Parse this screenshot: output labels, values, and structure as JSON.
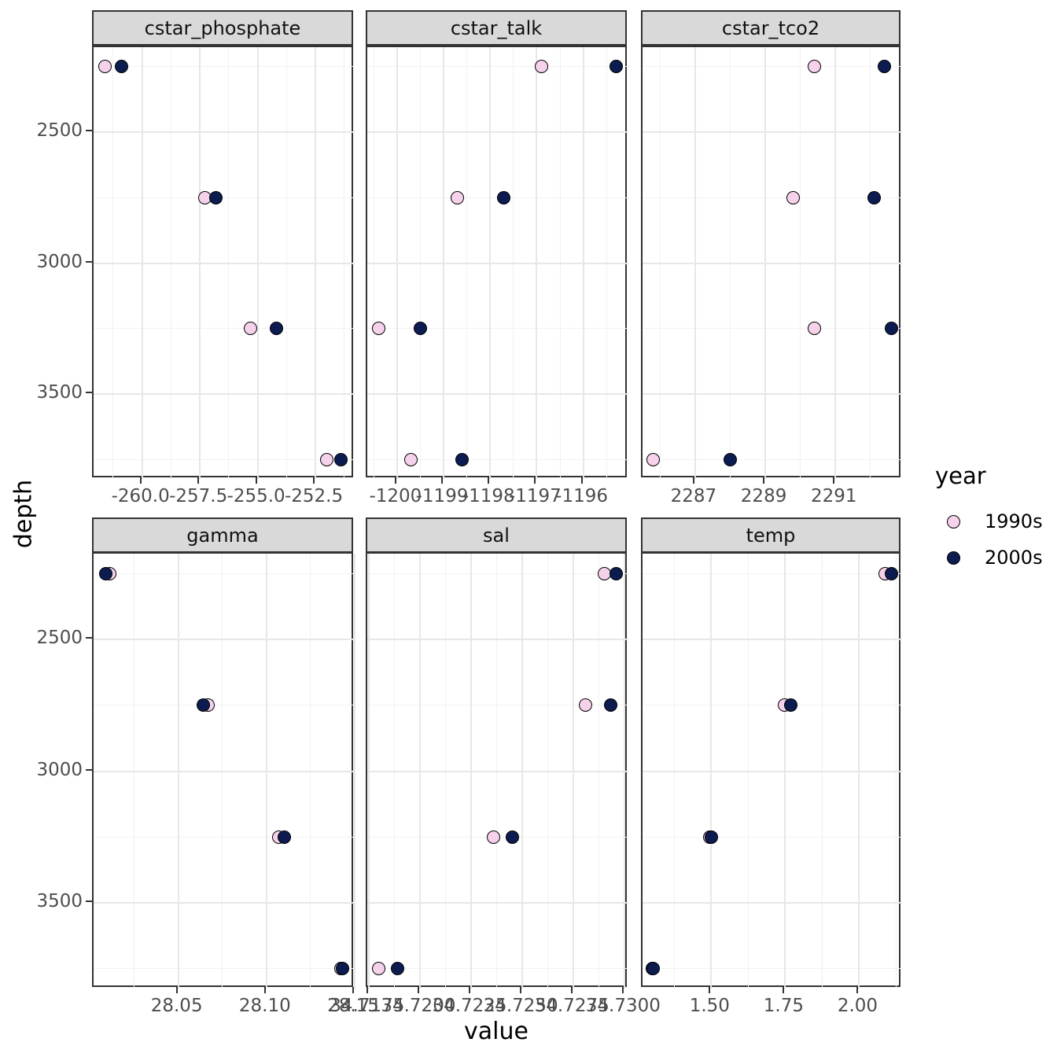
{
  "axes": {
    "x_title": "value",
    "y_title": "depth"
  },
  "legend": {
    "title": "year",
    "items": [
      {
        "label": "1990s",
        "color": "#f6d2ea"
      },
      {
        "label": "2000s",
        "color": "#0c1c50"
      }
    ]
  },
  "chart_data": {
    "type": "scatter",
    "title": "",
    "xlabel": "value",
    "ylabel": "depth",
    "legend_title": "year",
    "legend_position": "right",
    "grid": true,
    "facet_layout": "2 rows x 3 cols, free x scales, shared reversed y (depth)",
    "y_axis": {
      "domain": [
        2175,
        3825
      ],
      "reversed": true,
      "major_ticks": [
        {
          "value": 2500,
          "label": "2500"
        },
        {
          "value": 3000,
          "label": "3000"
        },
        {
          "value": 3500,
          "label": "3500"
        }
      ],
      "minor_gridlines": [
        2250,
        2750,
        3250,
        3750
      ]
    },
    "depths": [
      2250,
      2750,
      3250,
      3750
    ],
    "series_names": [
      "1990s",
      "2000s"
    ],
    "series_colors": {
      "1990s": "#f6d2ea",
      "2000s": "#0c1c50"
    },
    "facets": [
      {
        "title": "cstar_phosphate",
        "x_domain": [
          -262.1,
          -250.8
        ],
        "x_major_ticks": [
          {
            "value": -260.0,
            "label": "-260.0"
          },
          {
            "value": -257.5,
            "label": "-257.5"
          },
          {
            "value": -255.0,
            "label": "-255.0"
          },
          {
            "value": -252.5,
            "label": "-252.5"
          }
        ],
        "x_minor_gridlines": [
          -261.25,
          -258.75,
          -256.25,
          -253.75,
          -251.25
        ],
        "series": [
          {
            "name": "1990s",
            "x": [
              -261.6,
              -257.3,
              -255.3,
              -252.0
            ]
          },
          {
            "name": "2000s",
            "x": [
              -260.9,
              -256.8,
              -254.2,
              -251.4
            ]
          }
        ]
      },
      {
        "title": "cstar_talk",
        "x_domain": [
          -1200.64,
          -1195.03
        ],
        "x_major_ticks": [
          {
            "value": -1200,
            "label": "-1200"
          },
          {
            "value": -1199,
            "label": "-1199"
          },
          {
            "value": -1198,
            "label": "-1198"
          },
          {
            "value": -1197,
            "label": "-1197"
          },
          {
            "value": -1196,
            "label": "-1196"
          }
        ],
        "x_minor_gridlines": [
          -1200.5,
          -1199.5,
          -1198.5,
          -1197.5,
          -1196.5,
          -1195.5
        ],
        "series": [
          {
            "name": "1990s",
            "x": [
              -1196.9,
              -1198.7,
              -1200.4,
              -1199.7
            ]
          },
          {
            "name": "2000s",
            "x": [
              -1195.3,
              -1197.7,
              -1199.5,
              -1198.6
            ]
          }
        ]
      },
      {
        "title": "cstar_tco2",
        "x_domain": [
          2285.5,
          2292.9
        ],
        "x_major_ticks": [
          {
            "value": 2287,
            "label": "2287"
          },
          {
            "value": 2289,
            "label": "2289"
          },
          {
            "value": 2291,
            "label": "2291"
          }
        ],
        "x_minor_gridlines": [
          2286,
          2288,
          2290,
          2292
        ],
        "series": [
          {
            "name": "1990s",
            "x": [
              2290.4,
              2289.8,
              2290.4,
              2285.8
            ]
          },
          {
            "name": "2000s",
            "x": [
              2292.4,
              2292.1,
              2292.6,
              2288.0
            ]
          }
        ]
      },
      {
        "title": "gamma",
        "x_domain": [
          28.002,
          28.15
        ],
        "x_major_ticks": [
          {
            "value": 28.05,
            "label": "28.05"
          },
          {
            "value": 28.1,
            "label": "28.10"
          },
          {
            "value": 28.15,
            "label": "28.15"
          }
        ],
        "x_minor_gridlines": [
          28.025,
          28.075,
          28.125
        ],
        "series": [
          {
            "name": "1990s",
            "x": [
              28.011,
              28.067,
              28.107,
              28.142
            ]
          },
          {
            "name": "2000s",
            "x": [
              28.009,
              28.064,
              28.11,
              28.143
            ]
          }
        ]
      },
      {
        "title": "sal",
        "x_domain": [
          34.71743,
          34.73018
        ],
        "x_major_ticks": [
          {
            "value": 34.7175,
            "label": "34.7175"
          },
          {
            "value": 34.72,
            "label": "34.7200"
          },
          {
            "value": 34.7225,
            "label": "34.7225"
          },
          {
            "value": 34.725,
            "label": "34.7250"
          },
          {
            "value": 34.7275,
            "label": "34.7275"
          },
          {
            "value": 34.73,
            "label": "34.7300"
          }
        ],
        "x_minor_gridlines": [
          34.71875,
          34.72125,
          34.72375,
          34.72625,
          34.72875
        ],
        "series": [
          {
            "name": "1990s",
            "x": [
              34.729,
              34.7281,
              34.7236,
              34.718
            ]
          },
          {
            "name": "2000s",
            "x": [
              34.7296,
              34.7293,
              34.7245,
              34.7189
            ]
          }
        ]
      },
      {
        "title": "temp",
        "x_domain": [
          1.268,
          2.145
        ],
        "x_major_ticks": [
          {
            "value": 1.5,
            "label": "1.50"
          },
          {
            "value": 1.75,
            "label": "1.75"
          },
          {
            "value": 2.0,
            "label": "2.00"
          }
        ],
        "x_minor_gridlines": [
          1.375,
          1.625,
          1.875,
          2.125
        ],
        "series": [
          {
            "name": "1990s",
            "x": [
              2.087,
              1.748,
              1.495,
              1.3
            ]
          },
          {
            "name": "2000s",
            "x": [
              2.108,
              1.769,
              1.5,
              1.305
            ]
          }
        ]
      }
    ]
  }
}
